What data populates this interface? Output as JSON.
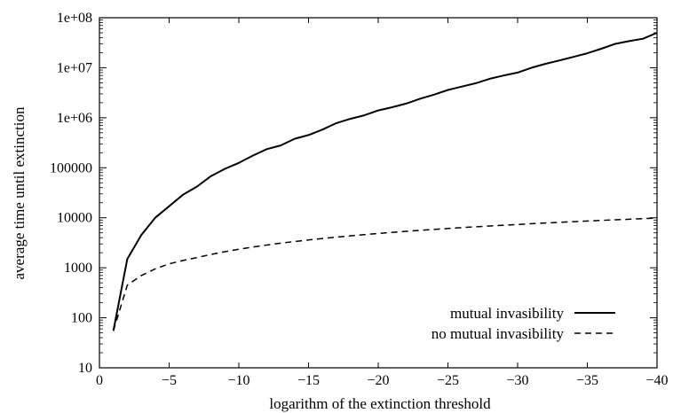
{
  "chart_data": {
    "type": "line",
    "xlabel": "logarithm of the extinction threshold",
    "ylabel": "average time until extinction",
    "xlim": [
      0,
      -40
    ],
    "ylim": [
      10,
      100000000
    ],
    "yscale": "log",
    "grid": false,
    "legend_position": "bottom-right",
    "x_ticks": [
      0,
      -5,
      -10,
      -15,
      -20,
      -25,
      -30,
      -35,
      -40
    ],
    "x_tick_labels": [
      "0",
      "−5",
      "−10",
      "−15",
      "−20",
      "−25",
      "−30",
      "−35",
      "−40"
    ],
    "y_ticks": [
      10,
      100,
      1000,
      10000,
      100000,
      1000000,
      10000000,
      100000000
    ],
    "y_tick_labels": [
      "10",
      "100",
      "1000",
      "10000",
      "100000",
      "1e+06",
      "1e+07",
      "1e+08"
    ],
    "x": [
      -1,
      -2,
      -3,
      -4,
      -5,
      -6,
      -7,
      -8,
      -9,
      -10,
      -11,
      -12,
      -13,
      -14,
      -15,
      -16,
      -17,
      -18,
      -19,
      -20,
      -21,
      -22,
      -23,
      -24,
      -25,
      -26,
      -27,
      -28,
      -29,
      -30,
      -31,
      -32,
      -33,
      -34,
      -35,
      -36,
      -37,
      -38,
      -39,
      -40
    ],
    "series": [
      {
        "name": "mutual invasibility",
        "line_style": "solid",
        "color": "#000000",
        "values": [
          55,
          1500,
          4500,
          10000,
          17000,
          29000,
          42000,
          68000,
          95000,
          125000,
          175000,
          235000,
          280000,
          380000,
          450000,
          580000,
          780000,
          950000,
          1120000,
          1400000,
          1620000,
          1920000,
          2400000,
          2900000,
          3600000,
          4200000,
          4900000,
          6000000,
          7000000,
          8000000,
          10000000,
          12000000,
          14000000,
          16500000,
          19500000,
          24000000,
          30000000,
          34000000,
          38000000,
          50000000
        ]
      },
      {
        "name": "no mutual invasibility",
        "line_style": "dashed",
        "color": "#000000",
        "values": [
          55,
          450,
          700,
          950,
          1200,
          1400,
          1600,
          1850,
          2100,
          2350,
          2600,
          2850,
          3100,
          3350,
          3600,
          3850,
          4100,
          4350,
          4600,
          4850,
          5100,
          5350,
          5600,
          5850,
          6100,
          6350,
          6600,
          6850,
          7100,
          7350,
          7600,
          7850,
          8100,
          8350,
          8600,
          8850,
          9100,
          9350,
          9600,
          9900
        ]
      }
    ]
  }
}
